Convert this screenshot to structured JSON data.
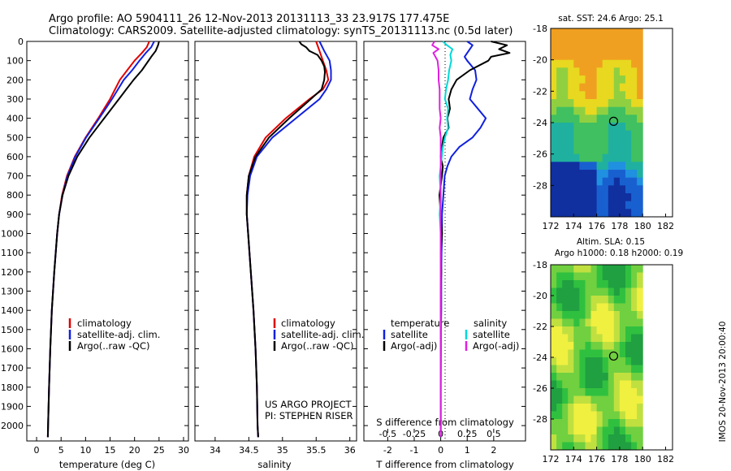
{
  "header": {
    "line1": "Argo profile: AO 5904111_26 12-Nov-2013 20131113_33 23.917S 177.475E",
    "line2": "Climatology: CARS2009. Satellite-adjusted climatology: synTS_20131113.nc (0.5d later)"
  },
  "colors": {
    "climatology": "#e00000",
    "satellite": "#1020e0",
    "argo": "#000000",
    "sat_diff": "#00d8d8",
    "argo_diff": "#e020e0"
  },
  "chart_data": [
    {
      "id": "temperature",
      "type": "line",
      "xlabel": "temperature (deg C)",
      "ylabel": "",
      "xlim": [
        -2,
        31
      ],
      "ylim": [
        2080,
        0
      ],
      "xticks": [
        0,
        5,
        10,
        15,
        20,
        25,
        30
      ],
      "yticks": [
        0,
        100,
        200,
        300,
        400,
        500,
        600,
        700,
        800,
        900,
        1000,
        1100,
        1200,
        1300,
        1400,
        1500,
        1600,
        1700,
        1800,
        1900,
        2000
      ],
      "legend": [
        "climatology",
        "satellite-adj. clim.",
        "Argo(..raw -QC)"
      ],
      "series": [
        {
          "name": "climatology",
          "color": "#e00000",
          "y": [
            0,
            30,
            60,
            100,
            150,
            200,
            300,
            400,
            500,
            600,
            700,
            800,
            900,
            1000,
            1200,
            1400,
            1600,
            1800,
            2000,
            2060
          ],
          "x": [
            23.0,
            22.5,
            21.5,
            20.0,
            18.5,
            17.0,
            15.0,
            12.6,
            10.0,
            7.8,
            6.2,
            5.2,
            4.6,
            4.2,
            3.6,
            3.1,
            2.8,
            2.55,
            2.35,
            2.3
          ]
        },
        {
          "name": "satellite-adj. clim.",
          "color": "#1020e0",
          "y": [
            0,
            30,
            60,
            100,
            150,
            200,
            300,
            400,
            500,
            600,
            700,
            800,
            900,
            1000,
            1200,
            1400,
            1600,
            1800,
            2000,
            2060
          ],
          "x": [
            24.0,
            23.4,
            22.3,
            21.0,
            19.5,
            17.8,
            15.4,
            12.8,
            10.1,
            7.9,
            6.3,
            5.3,
            4.6,
            4.2,
            3.6,
            3.1,
            2.8,
            2.55,
            2.35,
            2.3
          ]
        },
        {
          "name": "Argo(..raw -QC)",
          "color": "#000000",
          "y": [
            0,
            20,
            50,
            80,
            110,
            150,
            200,
            250,
            300,
            400,
            500,
            600,
            700,
            800,
            900,
            1000,
            1200,
            1400,
            1600,
            1800,
            2000,
            2060
          ],
          "x": [
            25.0,
            24.8,
            24.3,
            23.4,
            22.6,
            21.5,
            19.8,
            18.3,
            16.8,
            13.8,
            10.8,
            8.3,
            6.5,
            5.3,
            4.6,
            4.2,
            3.6,
            3.1,
            2.8,
            2.55,
            2.35,
            2.3
          ]
        }
      ]
    },
    {
      "id": "salinity",
      "type": "line",
      "xlabel": "salinity",
      "ylabel": "",
      "xlim": [
        33.7,
        36.1
      ],
      "ylim": [
        2080,
        0
      ],
      "xticks": [
        34,
        34.5,
        35,
        35.5,
        36
      ],
      "legend": [
        "climatology",
        "satellite-adj. clim.",
        "Argo(..raw -QC)"
      ],
      "annotation": [
        "US ARGO PROJECT",
        "PI: STEPHEN RISER"
      ],
      "series": [
        {
          "name": "climatology",
          "color": "#e00000",
          "y": [
            0,
            50,
            100,
            150,
            200,
            250,
            300,
            400,
            500,
            600,
            700,
            800,
            900,
            1000,
            1200,
            1400,
            1600,
            1800,
            2000,
            2060
          ],
          "x": [
            35.5,
            35.55,
            35.6,
            35.65,
            35.68,
            35.6,
            35.4,
            35.05,
            34.75,
            34.58,
            34.5,
            34.47,
            34.47,
            34.49,
            34.53,
            34.57,
            34.6,
            34.62,
            34.63,
            34.64
          ]
        },
        {
          "name": "satellite-adj. clim.",
          "color": "#1020e0",
          "y": [
            0,
            50,
            100,
            150,
            200,
            250,
            300,
            400,
            500,
            600,
            700,
            800,
            900,
            1000,
            1200,
            1400,
            1600,
            1800,
            2000,
            2060
          ],
          "x": [
            35.55,
            35.62,
            35.7,
            35.72,
            35.72,
            35.65,
            35.55,
            35.2,
            34.85,
            34.62,
            34.52,
            34.48,
            34.47,
            34.49,
            34.53,
            34.57,
            34.6,
            34.62,
            34.63,
            34.64
          ]
        },
        {
          "name": "Argo(..raw -QC)",
          "color": "#000000",
          "y": [
            0,
            15,
            30,
            50,
            70,
            100,
            130,
            160,
            200,
            250,
            300,
            400,
            500,
            600,
            700,
            800,
            900,
            1000,
            1200,
            1400,
            1600,
            1800,
            2000,
            2060
          ],
          "x": [
            35.25,
            35.28,
            35.35,
            35.4,
            35.52,
            35.58,
            35.62,
            35.63,
            35.62,
            35.58,
            35.42,
            35.1,
            34.8,
            34.6,
            34.5,
            34.47,
            34.47,
            34.49,
            34.53,
            34.57,
            34.6,
            34.62,
            34.63,
            34.64
          ]
        }
      ]
    },
    {
      "id": "difference",
      "type": "line",
      "xlabel": "T difference from climatology",
      "xlabel_top": "S difference from climatology",
      "xlim": [
        -2.9,
        3.2
      ],
      "ylim": [
        2080,
        0
      ],
      "xticks": [
        -2,
        -1,
        0,
        1,
        2
      ],
      "xticks_top": [
        -0.5,
        -0.25,
        0,
        0.25,
        0.5
      ],
      "legend_left_title": "temperature",
      "legend_right_title": "salinity",
      "legend_left": [
        "satellite",
        "Argo(-adj)"
      ],
      "legend_right": [
        "satellite",
        "Argo(-adj)"
      ],
      "series": [
        {
          "name": "T satellite",
          "color": "#1020e0",
          "y": [
            0,
            20,
            50,
            80,
            100,
            150,
            200,
            250,
            300,
            350,
            400,
            450,
            500,
            550,
            600,
            650,
            700,
            800,
            900,
            1000,
            1100,
            1200,
            1300,
            1400,
            1500,
            1600,
            1800,
            2000,
            2060
          ],
          "x": [
            1.0,
            1.2,
            1.05,
            0.9,
            1.0,
            1.3,
            1.35,
            1.2,
            1.1,
            1.4,
            1.7,
            1.5,
            1.2,
            0.7,
            0.4,
            0.25,
            0.15,
            0.1,
            0.05,
            0.05,
            0.03,
            0.02,
            0.02,
            0.02,
            0.01,
            0.01,
            0.0,
            0.0,
            0.0
          ]
        },
        {
          "name": "T Argo(-adj)",
          "color": "#000000",
          "y": [
            0,
            20,
            40,
            60,
            80,
            100,
            150,
            200,
            250,
            300,
            350,
            400,
            450,
            500,
            550,
            600,
            650,
            700,
            800,
            900,
            1000,
            1100,
            1200,
            1300,
            1400,
            1500,
            1800,
            2000,
            2060
          ],
          "x": [
            1.9,
            2.5,
            2.2,
            2.6,
            1.9,
            1.8,
            1.1,
            0.6,
            0.4,
            0.3,
            0.35,
            0.25,
            0.3,
            0.1,
            0.05,
            0.0,
            0.08,
            0.05,
            -0.05,
            0.0,
            0.05,
            0.0,
            0.02,
            0.0,
            0.0,
            0.0,
            0.0,
            0.0,
            0.0
          ]
        },
        {
          "name": "S satellite",
          "color": "#00d8d8",
          "y": [
            0,
            20,
            40,
            70,
            100,
            150,
            200,
            250,
            300,
            350,
            400,
            450,
            500,
            550,
            600,
            650,
            700,
            800,
            900,
            1000,
            1100,
            1200,
            1400,
            1600,
            1800,
            2000,
            2060
          ],
          "x": [
            0.02,
            0.06,
            0.11,
            0.09,
            0.1,
            0.08,
            0.07,
            0.05,
            0.04,
            0.07,
            0.06,
            0.07,
            0.04,
            0.02,
            0.01,
            0.0,
            -0.01,
            0.0,
            -0.01,
            0.0,
            0.0,
            0.0,
            0.0,
            0.0,
            0.0,
            0.0,
            0.0
          ]
        },
        {
          "name": "S Argo(-adj)",
          "color": "#e020e0",
          "y": [
            0,
            20,
            40,
            60,
            80,
            100,
            150,
            200,
            250,
            300,
            350,
            400,
            450,
            500,
            550,
            600,
            700,
            800,
            900,
            1000,
            1100,
            1200,
            1400,
            1600,
            1800,
            2000,
            2060
          ],
          "x": [
            -0.06,
            -0.08,
            -0.02,
            -0.07,
            -0.05,
            -0.03,
            -0.02,
            -0.02,
            -0.01,
            -0.01,
            -0.01,
            0.0,
            -0.01,
            0.0,
            0.0,
            0.0,
            0.0,
            0.0,
            0.0,
            0.0,
            0.0,
            0.0,
            0.0,
            0.0,
            0.0,
            0.0,
            0.0
          ]
        }
      ]
    },
    {
      "id": "sst_map",
      "type": "heatmap",
      "title": "sat. SST: 24.6 Argo: 25.1",
      "xlim": [
        172,
        182.6
      ],
      "ylim": [
        -30,
        -18
      ],
      "xticks": [
        172,
        174,
        176,
        178,
        180,
        182
      ],
      "yticks": [
        -18,
        -20,
        -22,
        -24,
        -26,
        -28
      ],
      "marker": {
        "lon": 177.475,
        "lat": -23.917
      }
    },
    {
      "id": "sla_map",
      "type": "heatmap",
      "title": "Altim. SLA: 0.15",
      "subtitle": "Argo h1000: 0.18 h2000: 0.19",
      "xlim": [
        172,
        182.6
      ],
      "ylim": [
        -30,
        -18
      ],
      "xticks": [
        172,
        174,
        176,
        178,
        180,
        182
      ],
      "yticks": [
        -18,
        -20,
        -22,
        -24,
        -26,
        -28
      ],
      "marker": {
        "lon": 177.475,
        "lat": -23.917
      }
    }
  ],
  "footer": {
    "side_label": "IMOS 20-Nov-2013 20:00:40"
  }
}
